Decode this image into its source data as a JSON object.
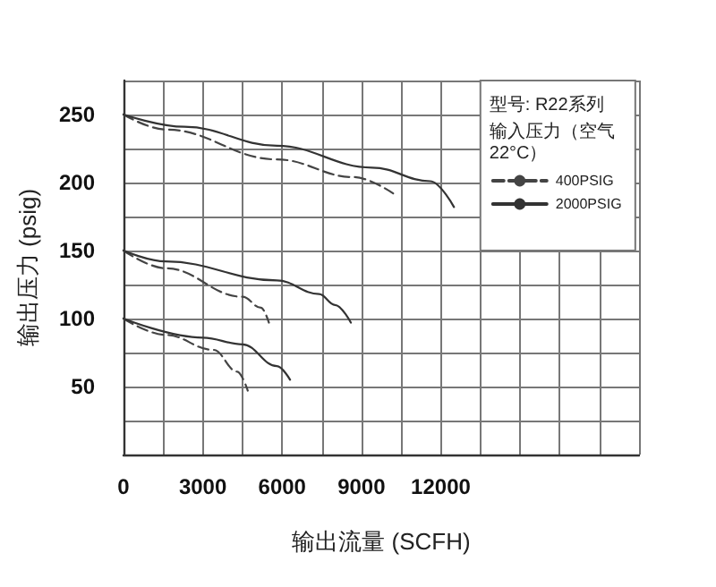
{
  "chart_data": {
    "type": "line",
    "xlabel": "输出流量 (SCFH)",
    "ylabel": "输出压力 (psig)",
    "annotations": [
      "型号: R22系列"
    ],
    "legend_title": "输入压力（空气22°C）",
    "legend": "top right",
    "grid": true,
    "xlim": [
      0,
      19500
    ],
    "xticks": [
      0,
      {
        "value": 1500,
        "label": null
      },
      3000,
      {
        "value": 4500,
        "label": null
      },
      6000,
      {
        "value": 7500,
        "label": null
      },
      9000,
      {
        "value": 10500,
        "label": null
      },
      12000,
      {
        "value": 13500,
        "label": null
      },
      {
        "value": 15000,
        "label": null
      },
      {
        "value": 16500,
        "label": null
      },
      {
        "value": 18000,
        "label": null
      },
      {
        "value": 19500,
        "label": null
      }
    ],
    "ylim": [
      0,
      275
    ],
    "yticks": [
      {
        "value": 0,
        "label": null
      },
      {
        "value": 25,
        "label": null
      },
      50,
      {
        "value": 75,
        "label": null
      },
      100,
      {
        "value": 125,
        "label": null
      },
      150,
      {
        "value": 175,
        "label": null
      },
      200,
      {
        "value": 225,
        "label": null
      },
      250,
      {
        "value": 275,
        "label": null
      }
    ],
    "series": [
      {
        "name": "400PSIG",
        "color": "#444444",
        "line_style": "dashed",
        "x": [
          0,
          1600,
          5800,
          8700,
          10200,
          null,
          0,
          1600,
          4500,
          5200,
          5500,
          null,
          0,
          1600,
          3400,
          4300,
          4700
        ],
        "values": [
          250,
          239,
          217,
          204,
          192,
          null,
          150,
          137,
          116,
          108,
          97,
          null,
          100,
          88,
          77,
          61,
          47
        ]
      },
      {
        "name": "2000PSIG",
        "color": "#333333",
        "line_style": "solid",
        "x": [
          0,
          2300,
          5800,
          9400,
          11600,
          12500,
          null,
          0,
          1600,
          5800,
          7400,
          8000,
          8600,
          null,
          0,
          3000,
          4500,
          5800,
          6300
        ],
        "values": [
          250,
          241,
          227,
          211,
          201,
          182,
          null,
          150,
          142,
          128,
          118,
          110,
          97,
          null,
          100,
          86,
          81,
          65,
          55
        ]
      }
    ]
  }
}
